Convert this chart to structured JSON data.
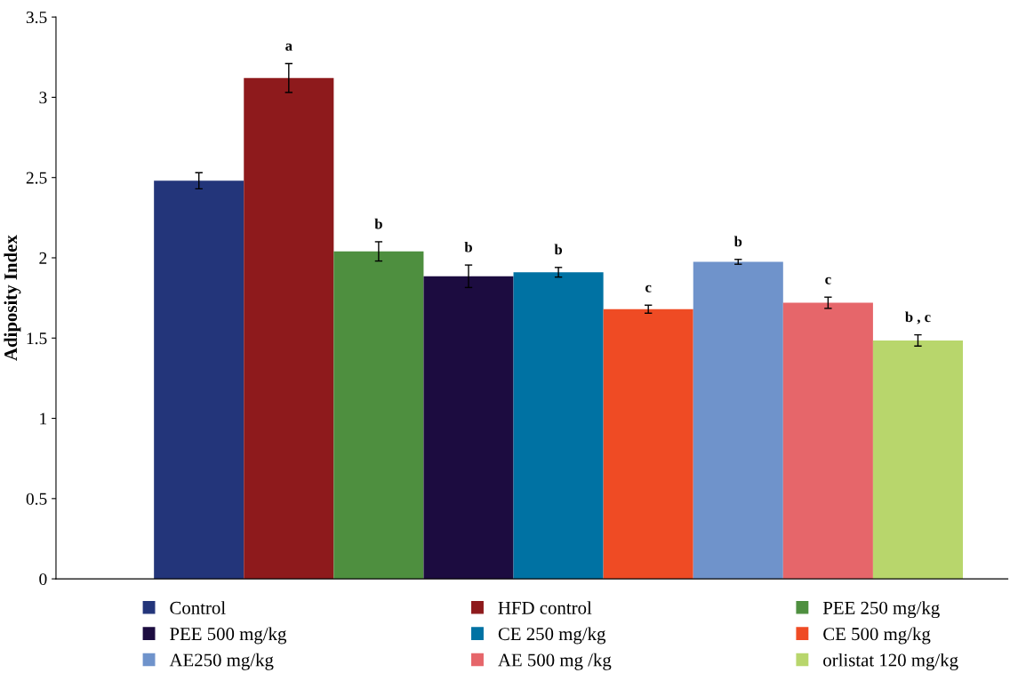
{
  "chart_data": {
    "type": "bar",
    "ylabel": "Adiposity Index",
    "categories": [
      null
    ],
    "series": [
      {
        "name": "Control",
        "color": "#23357a",
        "values": [
          2.48
        ],
        "errors": [
          0.05
        ],
        "value_labels": [
          null
        ]
      },
      {
        "name": "HFD control",
        "color": "#8e1a1c",
        "values": [
          3.12
        ],
        "errors": [
          0.09
        ],
        "value_labels": [
          "a"
        ]
      },
      {
        "name": "PEE 250 mg/kg",
        "color": "#4e8f3f",
        "values": [
          2.04
        ],
        "errors": [
          0.06
        ],
        "value_labels": [
          "b"
        ]
      },
      {
        "name": "PEE 500 mg/kg",
        "color": "#1c0c40",
        "values": [
          1.885
        ],
        "errors": [
          0.07
        ],
        "value_labels": [
          "b"
        ]
      },
      {
        "name": "CE 250 mg/kg",
        "color": "#0072a3",
        "values": [
          1.91
        ],
        "errors": [
          0.03
        ],
        "value_labels": [
          "b"
        ]
      },
      {
        "name": "CE 500 mg/kg",
        "color": "#ef4b24",
        "values": [
          1.68
        ],
        "errors": [
          0.025
        ],
        "value_labels": [
          "c"
        ]
      },
      {
        "name": "AE250 mg/kg",
        "color": "#6f93cb",
        "values": [
          1.975
        ],
        "errors": [
          0.015
        ],
        "value_labels": [
          "b"
        ]
      },
      {
        "name": "AE 500 mg /kg",
        "color": "#e6666a",
        "values": [
          1.72
        ],
        "errors": [
          0.035
        ],
        "value_labels": [
          "c"
        ]
      },
      {
        "name": "orlistat 120 mg/kg",
        "color": "#b8d66c",
        "values": [
          1.485
        ],
        "errors": [
          0.035
        ],
        "value_labels": [
          "b , c"
        ]
      }
    ],
    "ylim": [
      0,
      3.5
    ],
    "yticks": [
      0,
      0.5,
      1,
      1.5,
      2,
      2.5,
      3,
      3.5
    ],
    "grid": false,
    "legend": "bottom"
  }
}
